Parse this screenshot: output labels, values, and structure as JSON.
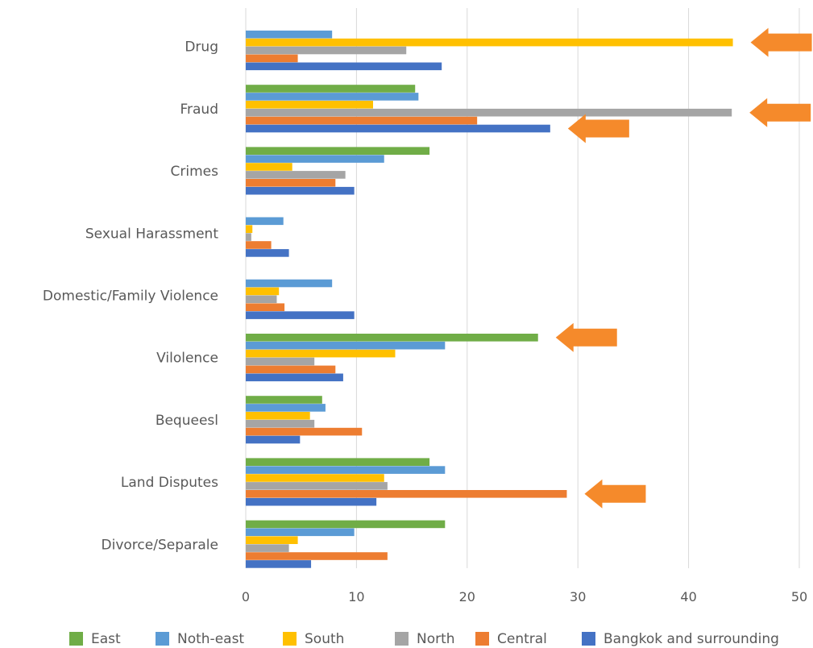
{
  "chart_data": {
    "type": "bar",
    "orientation": "horizontal",
    "categories": [
      "Drug",
      "Fraud",
      "Crimes",
      "Sexual Harassment",
      "Domestic/Family Violence",
      "Vilolence",
      "Bequeesl",
      "Land Disputes",
      "Divorce/Separale"
    ],
    "series": [
      {
        "name": "East",
        "color": "#70ad47",
        "values": [
          0,
          15.3,
          16.6,
          0,
          0,
          26.4,
          6.9,
          16.6,
          18.0
        ]
      },
      {
        "name": "Noth-east",
        "color": "#5b9bd5",
        "values": [
          7.8,
          15.6,
          12.5,
          3.4,
          7.8,
          18.0,
          7.2,
          18.0,
          9.8
        ]
      },
      {
        "name": "South",
        "color": "#ffc000",
        "values": [
          44.0,
          11.5,
          4.2,
          0.6,
          3.0,
          13.5,
          5.8,
          12.5,
          4.7
        ]
      },
      {
        "name": "North",
        "color": "#a5a5a5",
        "values": [
          14.5,
          43.9,
          9.0,
          0.5,
          2.8,
          6.2,
          6.2,
          12.8,
          3.9
        ]
      },
      {
        "name": "Central",
        "color": "#ed7d31",
        "values": [
          4.7,
          20.9,
          8.1,
          2.3,
          3.5,
          8.1,
          10.5,
          29.0,
          12.8
        ]
      },
      {
        "name": "Bangkok and surrounding",
        "color": "#4472c4",
        "values": [
          17.7,
          27.5,
          9.8,
          3.9,
          9.8,
          8.8,
          4.9,
          11.8,
          5.9
        ]
      }
    ],
    "xlim": [
      0,
      50
    ],
    "xticks": [
      "0",
      "10",
      "20",
      "30",
      "40",
      "50"
    ],
    "grid": "vertical",
    "legend_position": "bottom",
    "annotations": [
      {
        "shape": "arrow-left",
        "color": "#f58a2b",
        "category": "Drug",
        "series": "South"
      },
      {
        "shape": "arrow-left",
        "color": "#f58a2b",
        "category": "Fraud",
        "series": "North"
      },
      {
        "shape": "arrow-left",
        "color": "#f58a2b",
        "category": "Fraud",
        "series": "Bangkok and surrounding"
      },
      {
        "shape": "arrow-left",
        "color": "#f58a2b",
        "category": "Vilolence",
        "series": "East"
      },
      {
        "shape": "arrow-left",
        "color": "#f58a2b",
        "category": "Land Disputes",
        "series": "Central"
      }
    ]
  }
}
